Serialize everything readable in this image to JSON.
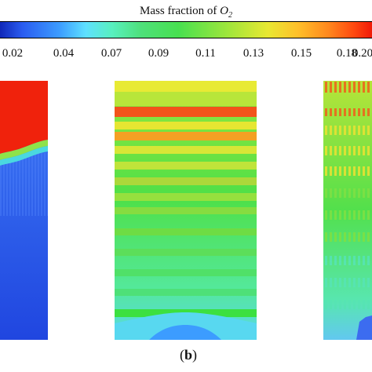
{
  "colorbar": {
    "title_prefix": "Mass fraction of ",
    "title_species": "O",
    "title_subscript": "2",
    "tick_labels": [
      "0.02",
      "0.04",
      "0.07",
      "0.09",
      "0.11",
      "0.13",
      "0.15",
      "0.18",
      "0.20"
    ]
  },
  "panel_label": {
    "open": "(",
    "letter": "b",
    "close": ")"
  },
  "colors": {
    "low": "#2a5cf0",
    "mid": "#48e050",
    "high": "#f01a08"
  }
}
